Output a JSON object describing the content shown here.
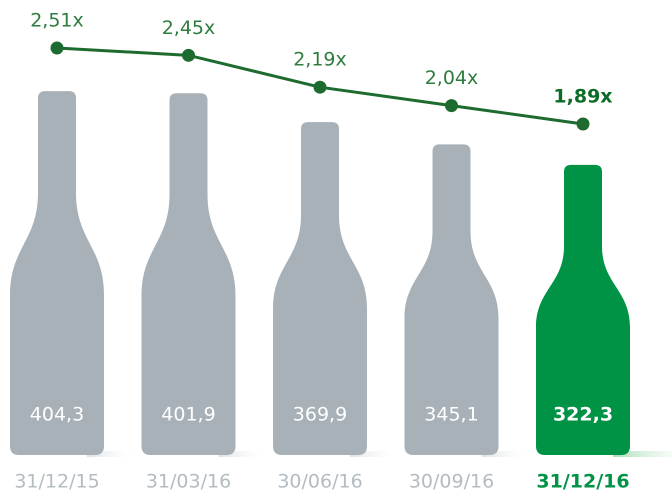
{
  "chart_data": {
    "type": "bottle",
    "categories": [
      "31/12/15",
      "31/03/16",
      "30/06/16",
      "30/09/16",
      "31/12/16"
    ],
    "values": [
      404.3,
      401.9,
      369.9,
      345.1,
      322.3
    ],
    "value_labels": [
      "404,3",
      "401,9",
      "369,9",
      "345,1",
      "322,3"
    ],
    "colors": [
      "#a7b1b7",
      "#a7b1b7",
      "#a7b1b7",
      "#a7b1b7",
      "#009245"
    ],
    "line": {
      "type": "line",
      "color": "#1d6b2f",
      "values": [
        2.51,
        2.45,
        2.19,
        2.04,
        1.89
      ],
      "value_labels": [
        "2,51x",
        "2,45x",
        "2,19x",
        "2,04x",
        "1,89x"
      ]
    }
  }
}
